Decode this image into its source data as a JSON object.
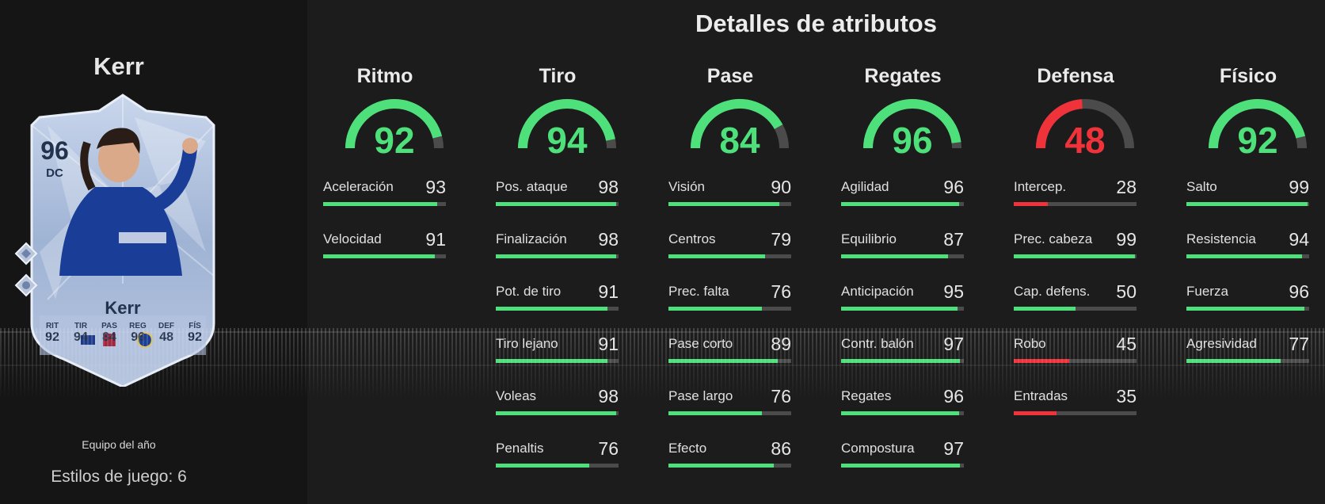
{
  "player": {
    "name": "Kerr",
    "card": {
      "rating": "96",
      "position": "DC",
      "name": "Kerr",
      "stats": [
        {
          "label": "RIT",
          "value": "92"
        },
        {
          "label": "TIR",
          "value": "94"
        },
        {
          "label": "PAS",
          "value": "84"
        },
        {
          "label": "REG",
          "value": "96"
        },
        {
          "label": "DEF",
          "value": "48"
        },
        {
          "label": "FÍS",
          "value": "92"
        }
      ]
    },
    "caption": "Equipo del año",
    "playstyles": "Estilos de juego: 6"
  },
  "section_title": "Detalles de atributos",
  "colors": {
    "high": "#4ee07a",
    "low": "#f0323b",
    "track": "#4a4b4a"
  },
  "categories": [
    {
      "title": "Ritmo",
      "value": 92,
      "rows": [
        {
          "label": "Aceleración",
          "value": 93
        },
        {
          "label": "Velocidad",
          "value": 91
        }
      ]
    },
    {
      "title": "Tiro",
      "value": 94,
      "rows": [
        {
          "label": "Pos. ataque",
          "value": 98
        },
        {
          "label": "Finalización",
          "value": 98
        },
        {
          "label": "Pot. de tiro",
          "value": 91
        },
        {
          "label": "Tiro lejano",
          "value": 91
        },
        {
          "label": "Voleas",
          "value": 98
        },
        {
          "label": "Penaltis",
          "value": 76
        }
      ]
    },
    {
      "title": "Pase",
      "value": 84,
      "rows": [
        {
          "label": "Visión",
          "value": 90
        },
        {
          "label": "Centros",
          "value": 79
        },
        {
          "label": "Prec. falta",
          "value": 76
        },
        {
          "label": "Pase corto",
          "value": 89
        },
        {
          "label": "Pase largo",
          "value": 76
        },
        {
          "label": "Efecto",
          "value": 86
        }
      ]
    },
    {
      "title": "Regates",
      "value": 96,
      "rows": [
        {
          "label": "Agilidad",
          "value": 96
        },
        {
          "label": "Equilibrio",
          "value": 87
        },
        {
          "label": "Anticipación",
          "value": 95
        },
        {
          "label": "Contr. balón",
          "value": 97
        },
        {
          "label": "Regates",
          "value": 96
        },
        {
          "label": "Compostura",
          "value": 97
        }
      ]
    },
    {
      "title": "Defensa",
      "value": 48,
      "rows": [
        {
          "label": "Intercep.",
          "value": 28
        },
        {
          "label": "Prec. cabeza",
          "value": 99
        },
        {
          "label": "Cap. defens.",
          "value": 50
        },
        {
          "label": "Robo",
          "value": 45
        },
        {
          "label": "Entradas",
          "value": 35
        }
      ]
    },
    {
      "title": "Físico",
      "value": 92,
      "rows": [
        {
          "label": "Salto",
          "value": 99
        },
        {
          "label": "Resistencia",
          "value": 94
        },
        {
          "label": "Fuerza",
          "value": 96
        },
        {
          "label": "Agresividad",
          "value": 77
        }
      ]
    }
  ]
}
